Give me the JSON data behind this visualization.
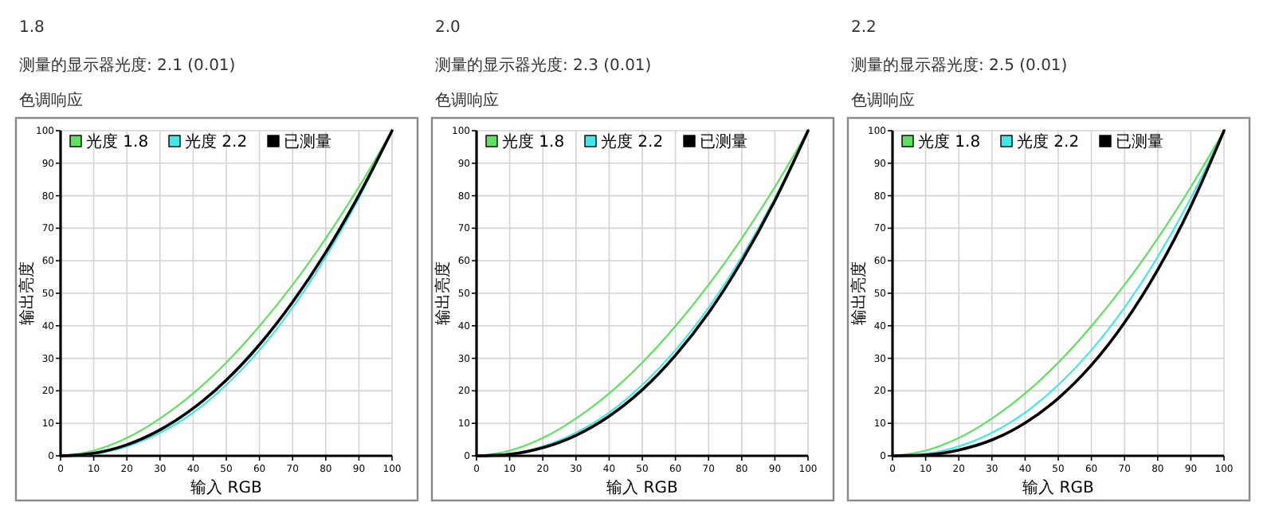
{
  "chart_data": [
    {
      "type": "line",
      "title": "1.8",
      "subtitle": "测量的显示器光度: 2.1 (0.01)",
      "annotations": [
        "色调响应"
      ],
      "xlabel": "输入 RGB",
      "ylabel": "输出亮度",
      "x": [
        0,
        10,
        20,
        30,
        40,
        50,
        60,
        70,
        80,
        90,
        100
      ],
      "xlim": [
        0,
        100
      ],
      "ylim": [
        0,
        100
      ],
      "xticks": [
        0,
        10,
        20,
        30,
        40,
        50,
        60,
        70,
        80,
        90,
        100
      ],
      "yticks": [
        0,
        10,
        20,
        30,
        40,
        50,
        60,
        70,
        80,
        90,
        100
      ],
      "grid": true,
      "legend": "top left",
      "series": [
        {
          "name": "光度 1.8",
          "color": "#5fe05f",
          "values": [
            0,
            1.6,
            5.5,
            11.5,
            19.2,
            28.7,
            39.9,
            52.6,
            66.9,
            82.7,
            100
          ]
        },
        {
          "name": "光度 2.2",
          "color": "#40e8e8",
          "values": [
            0,
            0.6,
            2.9,
            7.1,
            13.3,
            21.8,
            32.5,
            45.6,
            61.2,
            79.3,
            100
          ]
        },
        {
          "name": "已测量",
          "color": "#000000",
          "values": [
            0,
            0.8,
            3.4,
            8.0,
            14.6,
            23.3,
            34.2,
            47.3,
            62.6,
            80.2,
            100
          ]
        }
      ]
    },
    {
      "type": "line",
      "title": "2.0",
      "subtitle": "测量的显示器光度: 2.3 (0.01)",
      "annotations": [
        "色调响应"
      ],
      "xlabel": "输入 RGB",
      "ylabel": "输出亮度",
      "x": [
        0,
        10,
        20,
        30,
        40,
        50,
        60,
        70,
        80,
        90,
        100
      ],
      "xlim": [
        0,
        100
      ],
      "ylim": [
        0,
        100
      ],
      "xticks": [
        0,
        10,
        20,
        30,
        40,
        50,
        60,
        70,
        80,
        90,
        100
      ],
      "yticks": [
        0,
        10,
        20,
        30,
        40,
        50,
        60,
        70,
        80,
        90,
        100
      ],
      "grid": true,
      "legend": "top left",
      "series": [
        {
          "name": "光度 1.8",
          "color": "#5fe05f",
          "values": [
            0,
            1.6,
            5.5,
            11.5,
            19.2,
            28.7,
            39.9,
            52.6,
            66.9,
            82.7,
            100
          ]
        },
        {
          "name": "光度 2.2",
          "color": "#40e8e8",
          "values": [
            0,
            0.6,
            2.9,
            7.1,
            13.3,
            21.8,
            32.5,
            45.6,
            61.2,
            79.3,
            100
          ]
        },
        {
          "name": "已测量",
          "color": "#000000",
          "values": [
            0,
            0.5,
            2.5,
            6.3,
            12.2,
            20.3,
            30.9,
            44.0,
            59.9,
            78.5,
            100
          ]
        }
      ]
    },
    {
      "type": "line",
      "title": "2.2",
      "subtitle": "测量的显示器光度: 2.5 (0.01)",
      "annotations": [
        "色调响应"
      ],
      "xlabel": "输入 RGB",
      "ylabel": "输出亮度",
      "x": [
        0,
        10,
        20,
        30,
        40,
        50,
        60,
        70,
        80,
        90,
        100
      ],
      "xlim": [
        0,
        100
      ],
      "ylim": [
        0,
        100
      ],
      "xticks": [
        0,
        10,
        20,
        30,
        40,
        50,
        60,
        70,
        80,
        90,
        100
      ],
      "yticks": [
        0,
        10,
        20,
        30,
        40,
        50,
        60,
        70,
        80,
        90,
        100
      ],
      "grid": true,
      "legend": "top left",
      "series": [
        {
          "name": "光度 1.8",
          "color": "#5fe05f",
          "values": [
            0,
            1.6,
            5.5,
            11.5,
            19.2,
            28.7,
            39.9,
            52.6,
            66.9,
            82.7,
            100
          ]
        },
        {
          "name": "光度 2.2",
          "color": "#40e8e8",
          "values": [
            0,
            0.6,
            2.9,
            7.1,
            13.3,
            21.8,
            32.5,
            45.6,
            61.2,
            79.3,
            100
          ]
        },
        {
          "name": "已测量",
          "color": "#000000",
          "values": [
            0,
            0.3,
            1.8,
            4.9,
            10.1,
            17.7,
            27.9,
            41.0,
            57.2,
            76.8,
            100
          ]
        }
      ]
    }
  ]
}
